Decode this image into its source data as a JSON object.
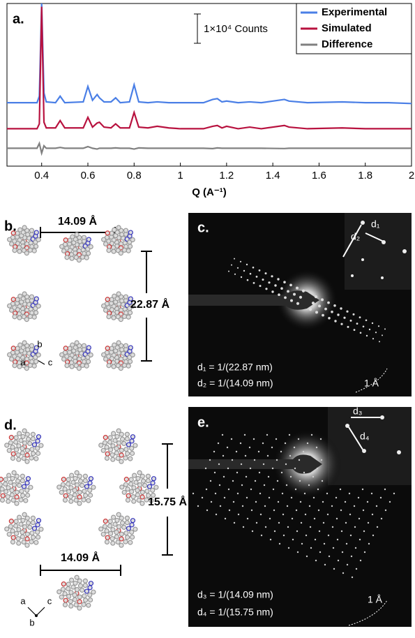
{
  "chart_data": {
    "type": "line",
    "panel_label": "a.",
    "xlabel": "Q (A⁻¹)",
    "scale_bar_label": "1×10⁴ Counts",
    "x": [
      0.25,
      0.38,
      0.39,
      0.4,
      0.41,
      0.42,
      0.46,
      0.48,
      0.5,
      0.58,
      0.6,
      0.62,
      0.64,
      0.65,
      0.67,
      0.7,
      0.72,
      0.74,
      0.78,
      0.8,
      0.82,
      0.86,
      0.9,
      0.95,
      1.0,
      1.1,
      1.14,
      1.16,
      1.18,
      1.2,
      1.25,
      1.3,
      1.35,
      1.45,
      1.47,
      1.55,
      1.7,
      1.8,
      1.9,
      2.0
    ],
    "series": [
      {
        "name": "Experimental",
        "color": "#4a7fe6",
        "values": [
          3.9,
          3.9,
          4.3,
          10,
          4.5,
          3.95,
          3.9,
          4.3,
          3.9,
          3.95,
          4.9,
          4.05,
          4.4,
          4.2,
          3.95,
          3.95,
          4.2,
          3.9,
          3.95,
          5.0,
          3.95,
          3.9,
          3.95,
          3.9,
          3.9,
          3.9,
          4.1,
          4.15,
          3.95,
          4.0,
          3.9,
          3.95,
          3.9,
          4.1,
          4.0,
          3.9,
          3.95,
          3.9,
          3.9,
          3.85
        ]
      },
      {
        "name": "Simulated",
        "color": "#b8123f",
        "values": [
          2.3,
          2.3,
          2.6,
          9.8,
          2.7,
          2.35,
          2.35,
          2.8,
          2.35,
          2.35,
          3.0,
          2.4,
          2.65,
          2.7,
          2.4,
          2.35,
          2.6,
          2.35,
          2.35,
          3.3,
          2.4,
          2.35,
          2.45,
          2.35,
          2.3,
          2.3,
          2.45,
          2.5,
          2.35,
          2.45,
          2.3,
          2.4,
          2.3,
          2.5,
          2.4,
          2.3,
          2.35,
          2.3,
          2.3,
          2.3
        ]
      },
      {
        "name": "Difference",
        "color": "#808080",
        "values": [
          1.1,
          1.1,
          1.4,
          0.8,
          1.25,
          1.1,
          1.1,
          1.15,
          1.1,
          1.1,
          1.2,
          1.1,
          1.05,
          1.1,
          1.1,
          1.1,
          1.12,
          1.1,
          1.1,
          1.05,
          1.12,
          1.1,
          1.1,
          1.1,
          1.1,
          1.1,
          1.08,
          1.12,
          1.1,
          1.1,
          1.1,
          1.1,
          1.1,
          1.08,
          1.1,
          1.1,
          1.1,
          1.1,
          1.1,
          1.1
        ]
      }
    ],
    "xlim": [
      0.25,
      2
    ],
    "ylim": [
      0,
      10
    ],
    "xticks": [
      0.4,
      0.6,
      0.8,
      1,
      1.2,
      1.4,
      1.6,
      1.8,
      2
    ],
    "legend": "upper right"
  },
  "panels": {
    "b": {
      "label": "b.",
      "width_label": "14.09 Å",
      "height_label": "22.87 Å",
      "axes": [
        "a",
        "b",
        "c"
      ]
    },
    "c": {
      "label": "c.",
      "inset_labels": [
        "d₂",
        "d₁"
      ],
      "lines": [
        "d₁ = 1/(22.87 nm)",
        "d₂ = 1/(14.09 nm)"
      ],
      "scale_label": "1 Å"
    },
    "d": {
      "label": "d.",
      "height_label": "15.75 Å",
      "width_label": "14.09 Å",
      "axes": [
        "a",
        "c",
        "b"
      ]
    },
    "e": {
      "label": "e.",
      "inset_labels": [
        "d₃",
        "d₄"
      ],
      "lines": [
        "d₃ = 1/(14.09 nm)",
        "d₄ = 1/(15.75 nm)"
      ],
      "scale_label": "1 Å"
    }
  }
}
